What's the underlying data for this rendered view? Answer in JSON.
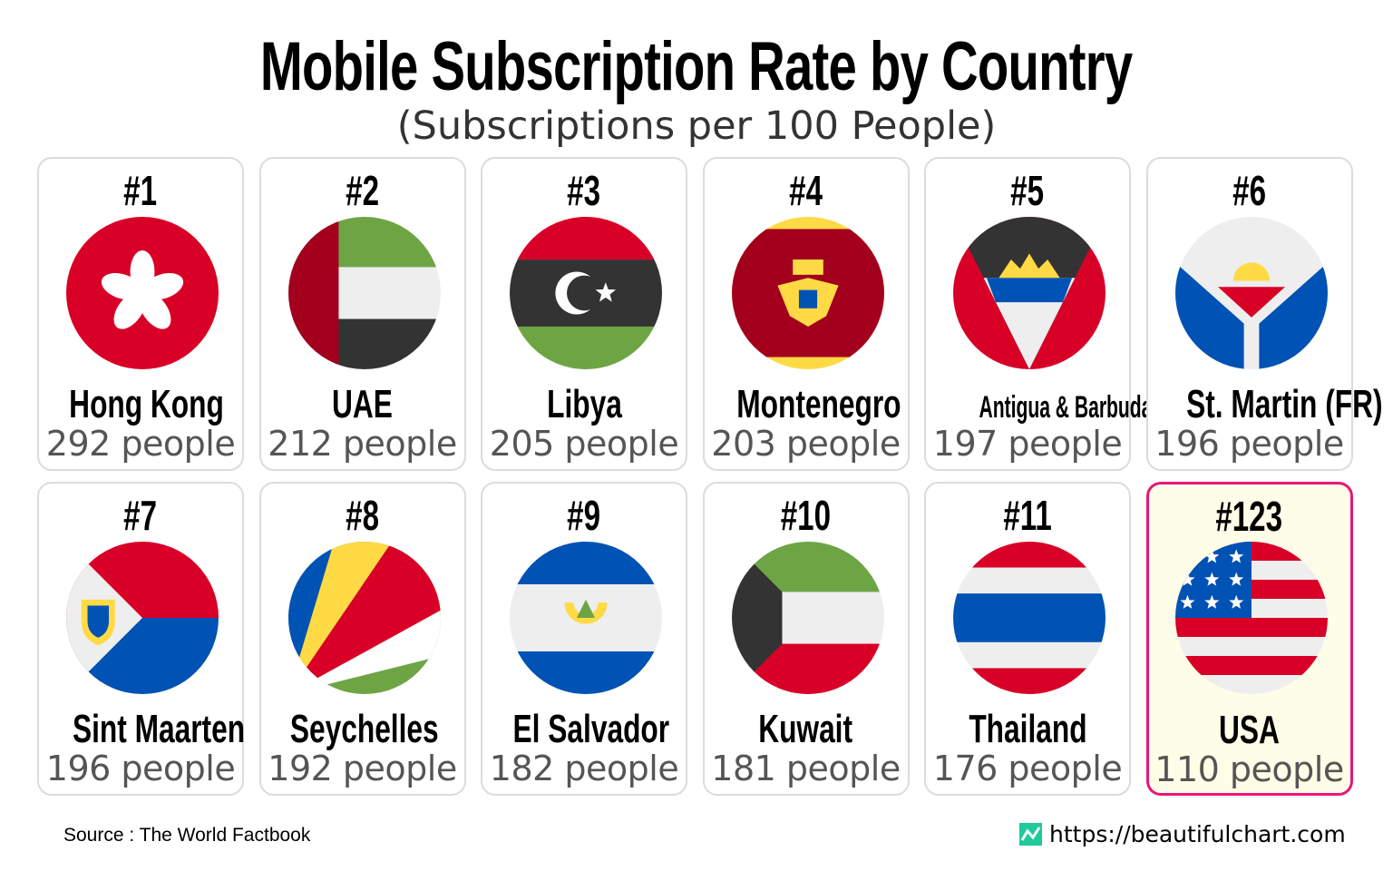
{
  "title": "Mobile Subscription Rate by Country",
  "subtitle": "(Subscriptions per 100 People)",
  "footer": {
    "source": "Source : The World Factbook",
    "site": "https://beautifulchart.com",
    "logo_icon": "line-chart-icon"
  },
  "colors": {
    "highlight_border": "#e8177a",
    "highlight_bg": "#fefde8",
    "card_border": "#dcdcdc",
    "logo": "#1fc99a"
  },
  "chart_data": {
    "type": "table",
    "title": "Mobile Subscription Rate by Country",
    "subtitle": "(Subscriptions per 100 People)",
    "unit": "people",
    "rows": [
      {
        "rank": "#1",
        "country": "Hong Kong",
        "value": 292,
        "label": "292 people",
        "flag": "hong-kong-flag-icon"
      },
      {
        "rank": "#2",
        "country": "UAE",
        "value": 212,
        "label": "212 people",
        "flag": "uae-flag-icon"
      },
      {
        "rank": "#3",
        "country": "Libya",
        "value": 205,
        "label": "205 people",
        "flag": "libya-flag-icon"
      },
      {
        "rank": "#4",
        "country": "Montenegro",
        "value": 203,
        "label": "203 people",
        "flag": "montenegro-flag-icon"
      },
      {
        "rank": "#5",
        "country": "Antigua & Barbuda",
        "value": 197,
        "label": "197 people",
        "flag": "antigua-flag-icon"
      },
      {
        "rank": "#6",
        "country": "St. Martin (FR)",
        "value": 196,
        "label": "196 people",
        "flag": "st-martin-flag-icon"
      },
      {
        "rank": "#7",
        "country": "Sint Maarten",
        "value": 196,
        "label": "196 people",
        "flag": "sint-maarten-flag-icon"
      },
      {
        "rank": "#8",
        "country": "Seychelles",
        "value": 192,
        "label": "192 people",
        "flag": "seychelles-flag-icon"
      },
      {
        "rank": "#9",
        "country": "El Salvador",
        "value": 182,
        "label": "182 people",
        "flag": "el-salvador-flag-icon"
      },
      {
        "rank": "#10",
        "country": "Kuwait",
        "value": 181,
        "label": "181 people",
        "flag": "kuwait-flag-icon"
      },
      {
        "rank": "#11",
        "country": "Thailand",
        "value": 176,
        "label": "176 people",
        "flag": "thailand-flag-icon"
      },
      {
        "rank": "#123",
        "country": "USA",
        "value": 110,
        "label": "110 people",
        "flag": "usa-flag-icon",
        "highlighted": true
      }
    ]
  }
}
